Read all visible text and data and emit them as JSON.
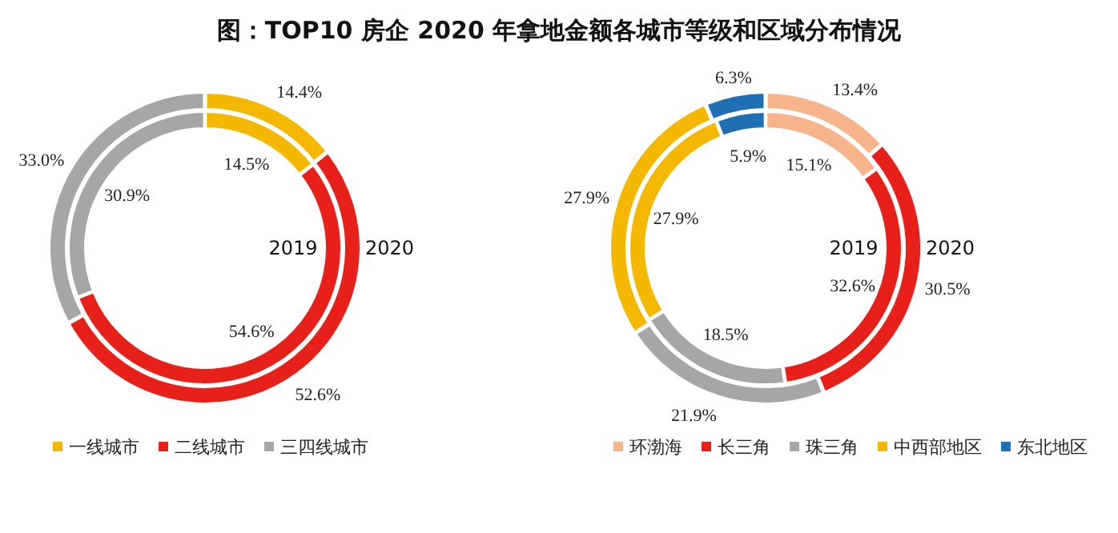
{
  "chart_data": [
    {
      "type": "donut",
      "title": "图：TOP10 房企 2020 年拿地金额各城市等级和区域分布情况",
      "categories": [
        "一线城市",
        "二线城市",
        "三四线城市"
      ],
      "colors": [
        "#f5b800",
        "#e8201a",
        "#a6a6a6"
      ],
      "legend": "bottom",
      "series": [
        {
          "name": "2019",
          "values": [
            14.5,
            54.6,
            30.9
          ],
          "value_labels": [
            "14.5%",
            "54.6%",
            "30.9%"
          ]
        },
        {
          "name": "2020",
          "values": [
            14.4,
            52.6,
            33.0
          ],
          "value_labels": [
            "14.4%",
            "52.6%",
            "33.0%"
          ]
        }
      ]
    },
    {
      "type": "donut",
      "categories": [
        "环渤海",
        "长三角",
        "珠三角",
        "中西部地区",
        "东北地区"
      ],
      "colors": [
        "#f7b38a",
        "#e8201a",
        "#a6a6a6",
        "#f5b800",
        "#1f6fb4"
      ],
      "legend": "bottom",
      "series": [
        {
          "name": "2019",
          "values": [
            15.1,
            32.6,
            18.5,
            27.9,
            5.9
          ],
          "value_labels": [
            "15.1%",
            "32.6%",
            "18.5%",
            "27.9%",
            "5.9%"
          ]
        },
        {
          "name": "2020",
          "values": [
            13.4,
            30.5,
            21.9,
            27.9,
            6.3
          ],
          "value_labels": [
            "13.4%",
            "30.5%",
            "21.9%",
            "27.9%",
            "6.3%"
          ]
        }
      ]
    }
  ]
}
